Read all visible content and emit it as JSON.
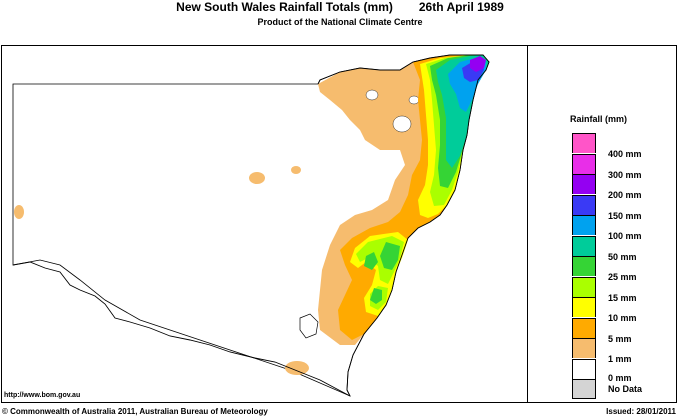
{
  "header": {
    "title": "New South Wales Rainfall Totals (mm)",
    "date": "26th April 1989",
    "subtitle": "Product of the National Climate Centre"
  },
  "legend": {
    "title": "Rainfall (mm)",
    "items": [
      {
        "label": "400 mm",
        "color": "#ff55c8"
      },
      {
        "label": "300 mm",
        "color": "#e82ee8"
      },
      {
        "label": "200 mm",
        "color": "#9400f2"
      },
      {
        "label": "150 mm",
        "color": "#3a3af5"
      },
      {
        "label": "100 mm",
        "color": "#00a2ef"
      },
      {
        "label": "50 mm",
        "color": "#00cc9a"
      },
      {
        "label": "25 mm",
        "color": "#35d435"
      },
      {
        "label": "15 mm",
        "color": "#aaff00"
      },
      {
        "label": "10 mm",
        "color": "#ffff00"
      },
      {
        "label": "5 mm",
        "color": "#ffaa00"
      },
      {
        "label": "1 mm",
        "color": "#f6bc6e"
      },
      {
        "label": "0 mm",
        "color": "#ffffff"
      },
      {
        "label": "No Data",
        "color": "#d4d4d4"
      }
    ]
  },
  "footer": {
    "url": "http://www.bom.gov.au",
    "copyright": "© Commonwealth of Australia 2011, Australian Bureau of Meteorology",
    "issued": "Issued: 28/01/2011"
  }
}
